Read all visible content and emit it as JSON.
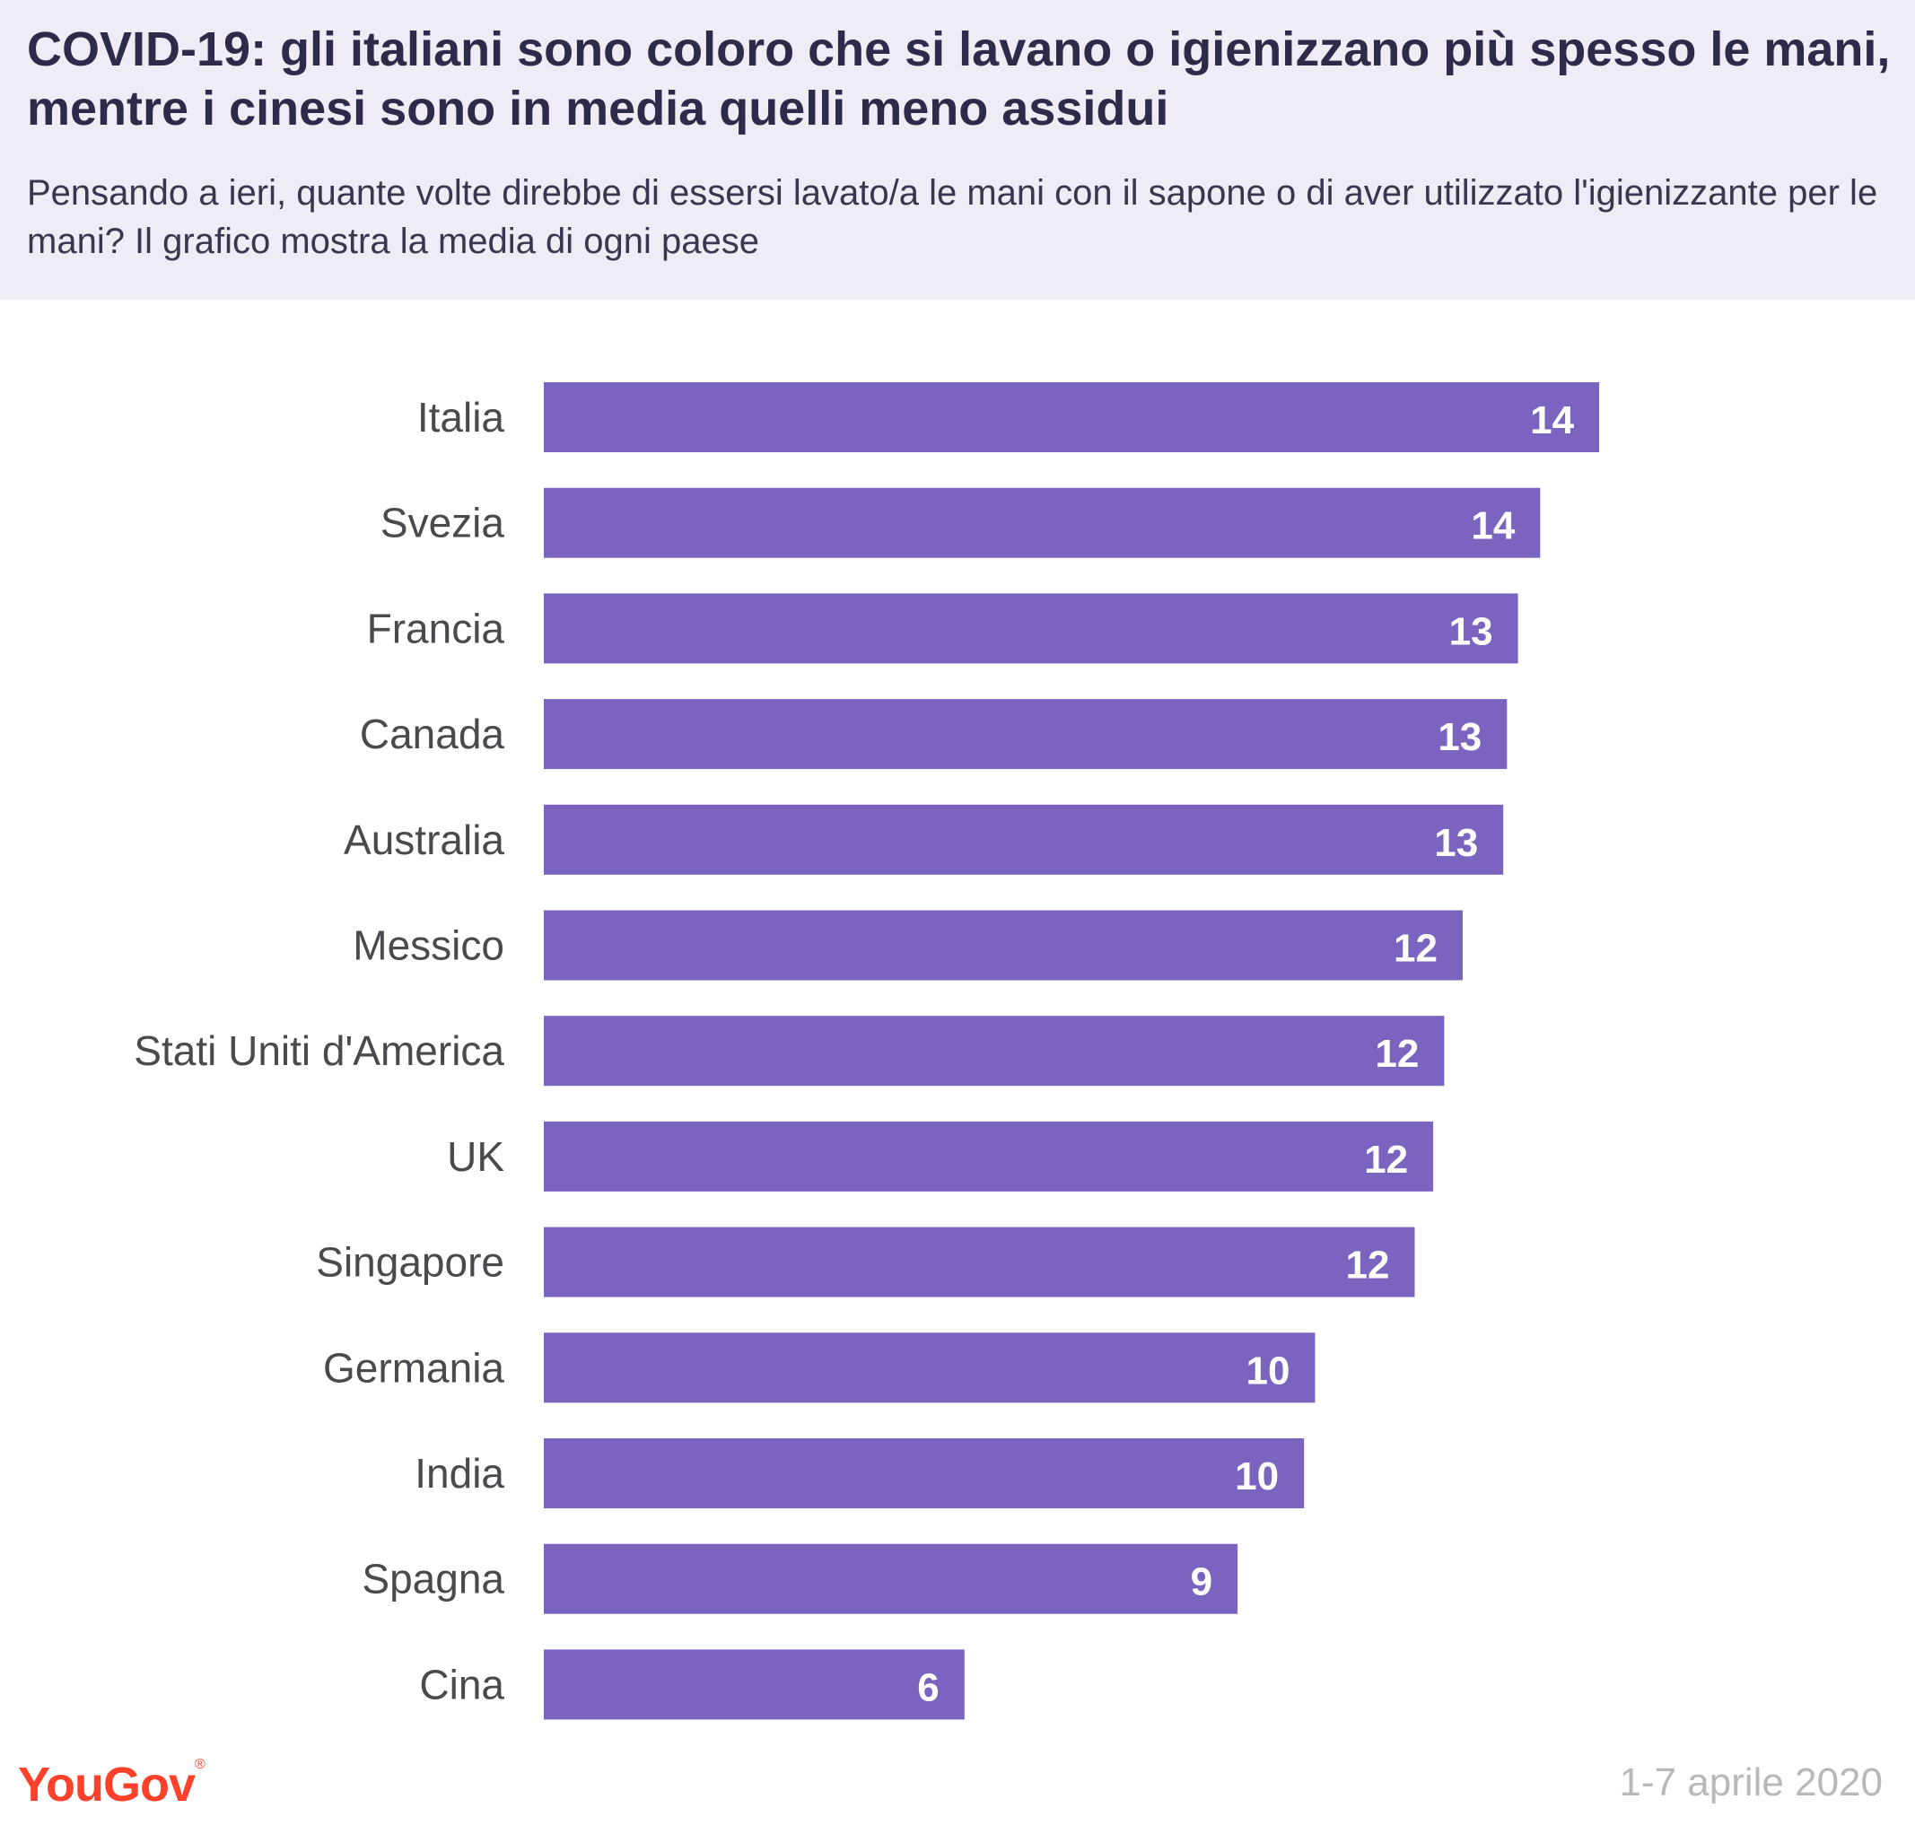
{
  "header": {
    "title": "COVID-19: gli italiani sono coloro che si lavano o igienizzano più spesso le mani, mentre i cinesi sono in media quelli meno assidui",
    "subtitle": "Pensando a ieri, quante volte direbbe di essersi lavato/a le mani con il sapone o di aver utilizzato l'igienizzante per le mani? Il grafico mostra la media di ogni paese"
  },
  "chart_data": {
    "type": "bar",
    "orientation": "horizontal",
    "categories": [
      "Italia",
      "Svezia",
      "Francia",
      "Canada",
      "Australia",
      "Messico",
      "Stati Uniti d'America",
      "UK",
      "Singapore",
      "Germania",
      "India",
      "Spagna",
      "Cina"
    ],
    "values": [
      14.3,
      13.5,
      13.2,
      13.05,
      13.0,
      12.45,
      12.2,
      12.05,
      11.8,
      10.45,
      10.3,
      9.4,
      5.7
    ],
    "data_labels": [
      "14",
      "14",
      "13",
      "13",
      "13",
      "12",
      "12",
      "12",
      "12",
      "10",
      "10",
      "9",
      "6"
    ],
    "xlim": [
      0,
      16
    ],
    "grid": false,
    "bar_color": "#7b64c0",
    "label_color": "#ffffff"
  },
  "footer": {
    "logo_text": "YouGov",
    "date": "1-7 aprile 2020",
    "logo_color": "#ff412c"
  }
}
